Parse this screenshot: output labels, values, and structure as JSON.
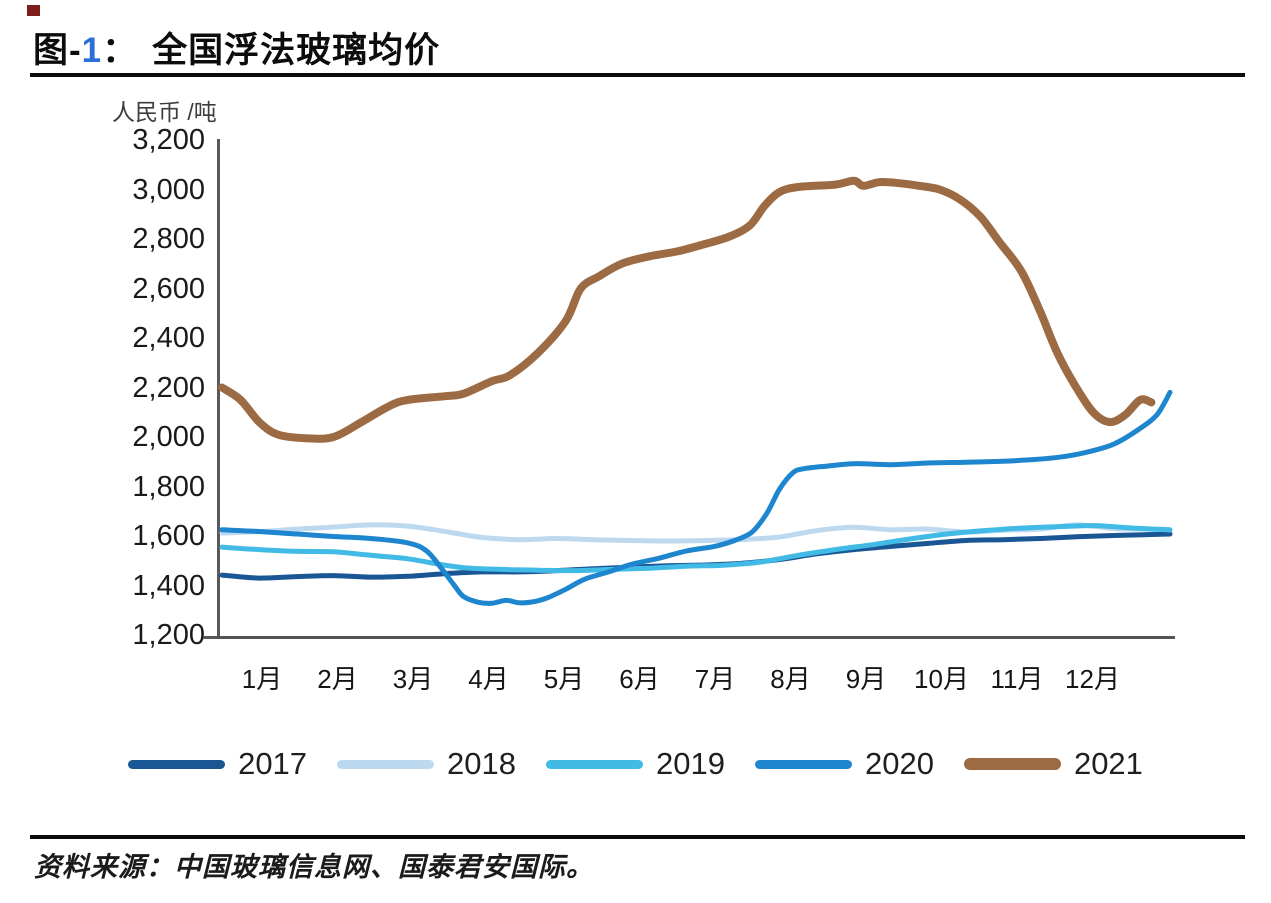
{
  "header": {
    "fig_label_prefix": "图-",
    "fig_number": "1",
    "fig_colon": "：",
    "title": "全国浮法玻璃均价",
    "accent_color": "#2a70d8",
    "corner_marker_color": "#7f1c1c"
  },
  "chart_data": {
    "type": "line",
    "title": "全国浮法玻璃均价",
    "unit_label": "人民币 /吨",
    "ylabel": "人民币/吨",
    "ylim": [
      1200,
      3200
    ],
    "y_tick_values": [
      3200,
      3000,
      2800,
      2600,
      2400,
      2200,
      2000,
      1800,
      1600,
      1400,
      1200
    ],
    "y_tick_labels": [
      "3,200",
      "3,000",
      "2,800",
      "2,600",
      "2,400",
      "2,200",
      "2,000",
      "1,800",
      "1,600",
      "1,400",
      "1,200"
    ],
    "categories": [
      "1月",
      "2月",
      "3月",
      "4月",
      "5月",
      "6月",
      "7月",
      "8月",
      "9月",
      "10月",
      "11月",
      "12月"
    ],
    "x_unit": "week_of_year",
    "grid": false,
    "legend_position": "bottom",
    "axis_color": "#595959",
    "series": [
      {
        "name": "2017",
        "color": "#1a5693",
        "line_width": 5,
        "points": [
          [
            0,
            1442
          ],
          [
            2,
            1430
          ],
          [
            4,
            1436
          ],
          [
            6,
            1440
          ],
          [
            8,
            1434
          ],
          [
            10,
            1437
          ],
          [
            12,
            1448
          ],
          [
            14,
            1455
          ],
          [
            16,
            1455
          ],
          [
            18,
            1460
          ],
          [
            20,
            1468
          ],
          [
            22,
            1474
          ],
          [
            24,
            1480
          ],
          [
            26,
            1483
          ],
          [
            28,
            1490
          ],
          [
            30,
            1505
          ],
          [
            32,
            1528
          ],
          [
            34,
            1545
          ],
          [
            36,
            1558
          ],
          [
            38,
            1570
          ],
          [
            40,
            1582
          ],
          [
            42,
            1585
          ],
          [
            44,
            1590
          ],
          [
            46,
            1597
          ],
          [
            48,
            1602
          ],
          [
            50,
            1606
          ],
          [
            51,
            1608
          ]
        ]
      },
      {
        "name": "2018",
        "color": "#bdd9f0",
        "line_width": 5,
        "points": [
          [
            0,
            1612
          ],
          [
            2,
            1618
          ],
          [
            4,
            1628
          ],
          [
            6,
            1636
          ],
          [
            8,
            1645
          ],
          [
            10,
            1640
          ],
          [
            12,
            1618
          ],
          [
            14,
            1594
          ],
          [
            16,
            1585
          ],
          [
            18,
            1590
          ],
          [
            20,
            1585
          ],
          [
            22,
            1582
          ],
          [
            24,
            1580
          ],
          [
            26,
            1582
          ],
          [
            28,
            1586
          ],
          [
            30,
            1596
          ],
          [
            32,
            1622
          ],
          [
            34,
            1635
          ],
          [
            36,
            1625
          ],
          [
            38,
            1628
          ],
          [
            40,
            1616
          ],
          [
            42,
            1623
          ],
          [
            44,
            1628
          ],
          [
            46,
            1645
          ],
          [
            48,
            1630
          ],
          [
            50,
            1628
          ],
          [
            51,
            1625
          ]
        ]
      },
      {
        "name": "2019",
        "color": "#41bae5",
        "line_width": 5,
        "points": [
          [
            0,
            1555
          ],
          [
            2,
            1545
          ],
          [
            4,
            1538
          ],
          [
            6,
            1536
          ],
          [
            8,
            1522
          ],
          [
            10,
            1508
          ],
          [
            11.5,
            1488
          ],
          [
            13,
            1472
          ],
          [
            15,
            1465
          ],
          [
            17,
            1462
          ],
          [
            19,
            1460
          ],
          [
            21,
            1465
          ],
          [
            23,
            1470
          ],
          [
            25,
            1478
          ],
          [
            27,
            1482
          ],
          [
            29,
            1495
          ],
          [
            31,
            1522
          ],
          [
            33,
            1545
          ],
          [
            35,
            1565
          ],
          [
            37,
            1588
          ],
          [
            39,
            1608
          ],
          [
            41,
            1622
          ],
          [
            43,
            1632
          ],
          [
            45,
            1638
          ],
          [
            47,
            1642
          ],
          [
            49,
            1632
          ],
          [
            51,
            1625
          ]
        ]
      },
      {
        "name": "2020",
        "color": "#1e86ce",
        "line_width": 5,
        "points": [
          [
            0,
            1625
          ],
          [
            2,
            1618
          ],
          [
            4,
            1608
          ],
          [
            6,
            1598
          ],
          [
            8,
            1590
          ],
          [
            10,
            1572
          ],
          [
            11,
            1540
          ],
          [
            11.8,
            1470
          ],
          [
            12.5,
            1400
          ],
          [
            13,
            1355
          ],
          [
            13.8,
            1332
          ],
          [
            14.5,
            1328
          ],
          [
            15.3,
            1340
          ],
          [
            16,
            1330
          ],
          [
            16.8,
            1335
          ],
          [
            17.5,
            1350
          ],
          [
            18.5,
            1385
          ],
          [
            19.5,
            1425
          ],
          [
            20.8,
            1455
          ],
          [
            22,
            1485
          ],
          [
            23.5,
            1510
          ],
          [
            25,
            1540
          ],
          [
            26.5,
            1558
          ],
          [
            27.5,
            1580
          ],
          [
            28.5,
            1615
          ],
          [
            29.3,
            1690
          ],
          [
            30,
            1790
          ],
          [
            30.7,
            1855
          ],
          [
            31.3,
            1872
          ],
          [
            32.5,
            1882
          ],
          [
            34,
            1892
          ],
          [
            36,
            1888
          ],
          [
            38,
            1895
          ],
          [
            40,
            1898
          ],
          [
            42,
            1902
          ],
          [
            43.5,
            1908
          ],
          [
            45,
            1918
          ],
          [
            46.5,
            1938
          ],
          [
            48,
            1972
          ],
          [
            49.3,
            2030
          ],
          [
            50.3,
            2090
          ],
          [
            51,
            2180
          ]
        ]
      },
      {
        "name": "2021",
        "color": "#9c6b44",
        "line_width": 8,
        "points": [
          [
            0,
            2200
          ],
          [
            1,
            2150
          ],
          [
            2,
            2060
          ],
          [
            3,
            2010
          ],
          [
            4.5,
            1995
          ],
          [
            6,
            2000
          ],
          [
            7.5,
            2060
          ],
          [
            9,
            2125
          ],
          [
            10,
            2150
          ],
          [
            12,
            2165
          ],
          [
            13,
            2175
          ],
          [
            14.5,
            2225
          ],
          [
            15.5,
            2250
          ],
          [
            17,
            2340
          ],
          [
            18.5,
            2470
          ],
          [
            19.3,
            2600
          ],
          [
            20.3,
            2650
          ],
          [
            21.5,
            2700
          ],
          [
            23,
            2730
          ],
          [
            24.5,
            2750
          ],
          [
            26,
            2780
          ],
          [
            27.3,
            2810
          ],
          [
            28.4,
            2855
          ],
          [
            29.2,
            2935
          ],
          [
            30,
            2990
          ],
          [
            31,
            3010
          ],
          [
            33,
            3020
          ],
          [
            34,
            3035
          ],
          [
            34.5,
            3015
          ],
          [
            35.4,
            3030
          ],
          [
            36.5,
            3025
          ],
          [
            37.5,
            3015
          ],
          [
            38.6,
            3000
          ],
          [
            39.7,
            2960
          ],
          [
            40.8,
            2890
          ],
          [
            41.8,
            2790
          ],
          [
            43,
            2670
          ],
          [
            44,
            2510
          ],
          [
            45,
            2330
          ],
          [
            46.2,
            2170
          ],
          [
            47,
            2090
          ],
          [
            47.8,
            2060
          ],
          [
            48.6,
            2090
          ],
          [
            49.4,
            2150
          ],
          [
            50,
            2140
          ]
        ]
      }
    ]
  },
  "footer": {
    "source": "资料来源：中国玻璃信息网、国泰君安国际。"
  }
}
